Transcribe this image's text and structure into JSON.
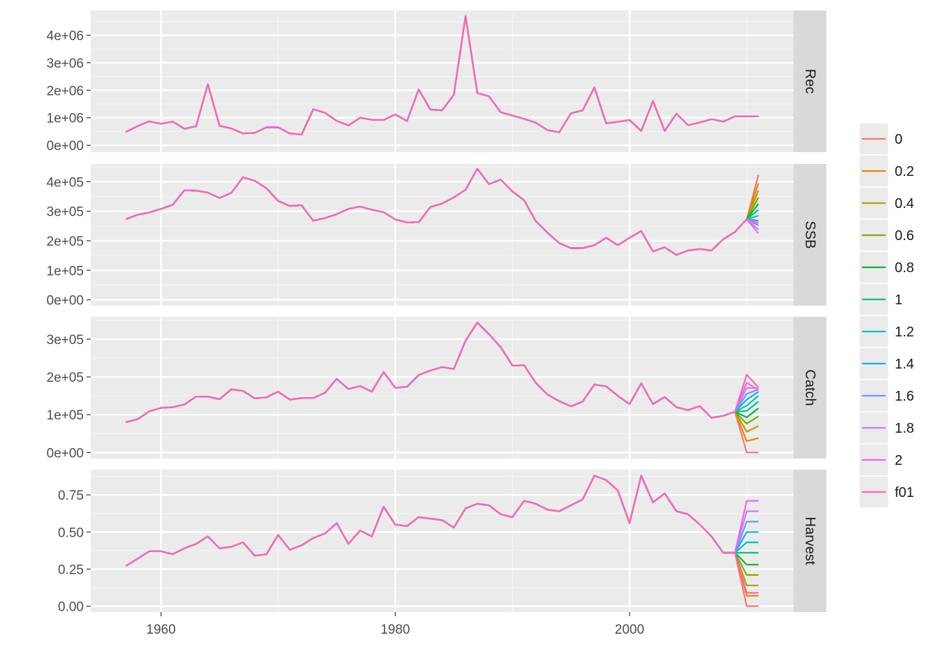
{
  "chart_data": {
    "type": "line",
    "layout": "faceted",
    "x_range": [
      1954,
      2014
    ],
    "x_ticks": [
      1960,
      1980,
      2000
    ],
    "x_tick_labels": [
      "1960",
      "1980",
      "2000"
    ],
    "hist_start_year": 1957,
    "proj_years": [
      2009,
      2010,
      2011
    ],
    "legend": {
      "position": "right",
      "entries": [
        {
          "label": "0",
          "color": "#F8766D"
        },
        {
          "label": "0.2",
          "color": "#DE8C00"
        },
        {
          "label": "0.4",
          "color": "#B79F00"
        },
        {
          "label": "0.6",
          "color": "#7CAE00"
        },
        {
          "label": "0.8",
          "color": "#00BA38"
        },
        {
          "label": "1",
          "color": "#00C08B"
        },
        {
          "label": "1.2",
          "color": "#00BFC4"
        },
        {
          "label": "1.4",
          "color": "#00B4F0"
        },
        {
          "label": "1.6",
          "color": "#619CFF"
        },
        {
          "label": "1.8",
          "color": "#C77CFF"
        },
        {
          "label": "2",
          "color": "#F564E3"
        },
        {
          "label": "f01",
          "color": "#FF64B0"
        }
      ]
    },
    "facets": [
      {
        "name": "Rec",
        "ylim": [
          -250000,
          4900000
        ],
        "y_ticks": [
          0,
          1000000,
          2000000,
          3000000,
          4000000
        ],
        "y_tick_labels": [
          "0e+00",
          "1e+06",
          "2e+06",
          "3e+06",
          "4e+06"
        ],
        "history": [
          480000,
          700000,
          870000,
          780000,
          860000,
          600000,
          690000,
          2220000,
          710000,
          610000,
          430000,
          450000,
          650000,
          650000,
          430000,
          390000,
          1310000,
          1180000,
          890000,
          720000,
          1000000,
          930000,
          920000,
          1120000,
          880000,
          2030000,
          1300000,
          1270000,
          1840000,
          4700000,
          1900000,
          1780000,
          1200000,
          1080000,
          960000,
          820000,
          550000,
          470000,
          1160000,
          1270000,
          2100000,
          800000,
          850000,
          920000,
          520000,
          1610000,
          520000,
          1150000,
          730000,
          830000,
          950000,
          860000,
          1050000
        ],
        "proj_end": [
          1050000,
          1050000,
          1050000,
          1050000,
          1050000,
          1050000,
          1050000,
          1050000,
          1050000,
          1050000,
          1050000,
          1050000
        ],
        "proj_step": [
          1050000,
          1050000,
          1050000,
          1050000,
          1050000,
          1050000,
          1050000,
          1050000,
          1050000,
          1050000,
          1050000,
          1050000
        ]
      },
      {
        "name": "SSB",
        "ylim": [
          -20000,
          460000
        ],
        "y_ticks": [
          0,
          100000,
          200000,
          300000,
          400000
        ],
        "y_tick_labels": [
          "0e+00",
          "1e+05",
          "2e+05",
          "3e+05",
          "4e+05"
        ],
        "history": [
          273000,
          288000,
          296000,
          308000,
          322000,
          371000,
          370000,
          363000,
          345000,
          362000,
          415000,
          403000,
          378000,
          335000,
          318000,
          320000,
          268000,
          277000,
          290000,
          308000,
          316000,
          305000,
          297000,
          272000,
          262000,
          263000,
          314000,
          326000,
          347000,
          373000,
          444000,
          392000,
          407000,
          367000,
          337000,
          266000,
          227000,
          192000,
          175000,
          175000,
          185000,
          210000,
          185000,
          210000,
          233000,
          164000,
          178000,
          152000,
          167000,
          172000,
          167000,
          205000,
          230000
        ],
        "proj_end": [
          423000,
          395000,
          370000,
          347000,
          325000,
          305000,
          285000,
          268000,
          252000,
          238000,
          225000,
          260000
        ],
        "proj_step": [
          273000,
          273000,
          273000,
          273000,
          273000,
          273000,
          273000,
          273000,
          273000,
          273000,
          273000,
          273000
        ]
      },
      {
        "name": "Catch",
        "ylim": [
          -16000,
          359000
        ],
        "y_ticks": [
          0,
          100000,
          200000,
          300000
        ],
        "y_tick_labels": [
          "0e+00",
          "1e+05",
          "2e+05",
          "3e+05"
        ],
        "history": [
          80000,
          88000,
          109000,
          118000,
          120000,
          127000,
          148000,
          148000,
          141000,
          167000,
          163000,
          143000,
          146000,
          161000,
          140000,
          144000,
          144000,
          158000,
          195000,
          168000,
          176000,
          161000,
          213000,
          171000,
          174000,
          205000,
          217000,
          226000,
          221000,
          296000,
          344000,
          313000,
          279000,
          230000,
          231000,
          184000,
          153000,
          136000,
          122000,
          135000,
          180000,
          175000,
          150000,
          128000,
          183000,
          128000,
          147000,
          120000,
          112000,
          123000,
          92000,
          97000,
          108000
        ],
        "proj_step": [
          0,
          30000,
          55000,
          76000,
          93000,
          110000,
          124000,
          140000,
          155000,
          171000,
          185000,
          206000
        ],
        "proj_end": [
          0,
          38000,
          70000,
          96000,
          117000,
          135000,
          150000,
          161000,
          167000,
          170000,
          165000,
          172000
        ]
      },
      {
        "name": "Harvest",
        "ylim": [
          -0.04,
          0.92
        ],
        "y_ticks": [
          0,
          0.25,
          0.5,
          0.75
        ],
        "y_tick_labels": [
          "0.00",
          "0.25",
          "0.50",
          "0.75"
        ],
        "history": [
          0.27,
          0.32,
          0.37,
          0.37,
          0.35,
          0.39,
          0.42,
          0.47,
          0.39,
          0.4,
          0.43,
          0.34,
          0.35,
          0.48,
          0.38,
          0.41,
          0.46,
          0.49,
          0.56,
          0.42,
          0.51,
          0.47,
          0.67,
          0.55,
          0.54,
          0.6,
          0.59,
          0.58,
          0.53,
          0.66,
          0.69,
          0.68,
          0.62,
          0.6,
          0.71,
          0.69,
          0.65,
          0.64,
          0.68,
          0.72,
          0.88,
          0.85,
          0.78,
          0.56,
          0.88,
          0.7,
          0.76,
          0.64,
          0.62,
          0.55,
          0.47,
          0.36,
          0.36
        ],
        "proj_step": [
          0,
          0.07,
          0.14,
          0.21,
          0.28,
          0.36,
          0.43,
          0.5,
          0.57,
          0.64,
          0.71,
          0.09
        ],
        "proj_end": [
          0,
          0.07,
          0.14,
          0.21,
          0.28,
          0.36,
          0.43,
          0.5,
          0.57,
          0.64,
          0.71,
          0.09
        ]
      }
    ]
  }
}
